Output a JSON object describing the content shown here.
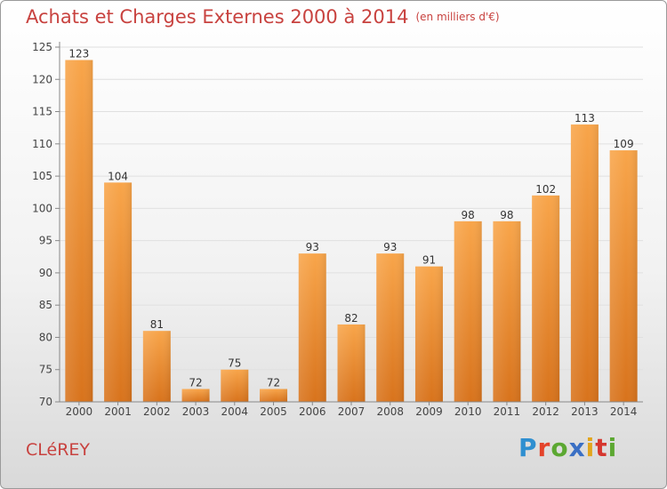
{
  "header": {
    "title": "Achats et Charges Externes 2000 à 2014",
    "unit": "(en milliers d'€)"
  },
  "footer": {
    "commune": "CLéREY",
    "logo": [
      "P",
      "r",
      "o",
      "x",
      "i",
      "t",
      "i"
    ],
    "logo_colors": [
      "#2f8fd0",
      "#e4432a",
      "#5ca832",
      "#3a6fc4",
      "#e2a51d",
      "#d5372f",
      "#5ca832"
    ]
  },
  "colors": {
    "bar_light": "#f8a54a",
    "bar_dark": "#d8731c",
    "accent": "#c8423f",
    "grid": "#e0e0e0"
  },
  "chart_data": {
    "type": "bar",
    "categories": [
      "2000",
      "2001",
      "2002",
      "2003",
      "2004",
      "2005",
      "2006",
      "2007",
      "2008",
      "2009",
      "2010",
      "2011",
      "2012",
      "2013",
      "2014"
    ],
    "values": [
      123,
      104,
      81,
      72,
      75,
      72,
      93,
      82,
      93,
      91,
      98,
      98,
      102,
      113,
      109
    ],
    "ylim": [
      70,
      125
    ],
    "yticks": [
      70,
      75,
      80,
      85,
      90,
      95,
      100,
      105,
      110,
      115,
      120,
      125
    ],
    "grid": true,
    "data_labels": true
  }
}
